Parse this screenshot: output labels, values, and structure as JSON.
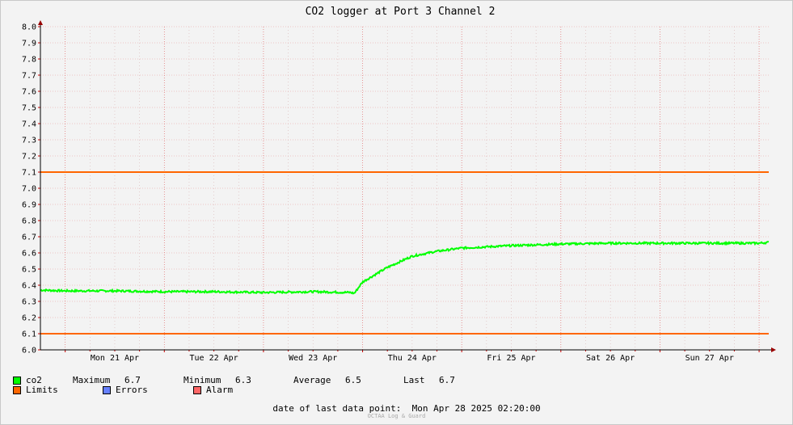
{
  "chart_data": {
    "type": "line",
    "title": "CO2 logger at Port 3 Channel 2",
    "xlabel": "",
    "ylabel": "",
    "ylim": [
      6.0,
      8.0
    ],
    "yticks": [
      "6.0",
      "6.1",
      "6.2",
      "6.3",
      "6.4",
      "6.5",
      "6.6",
      "6.7",
      "6.8",
      "6.9",
      "7.0",
      "7.1",
      "7.2",
      "7.3",
      "7.4",
      "7.5",
      "7.6",
      "7.7",
      "7.8",
      "7.9",
      "8.0"
    ],
    "xlim": [
      "2025-04-20 18:00",
      "2025-04-28 02:20"
    ],
    "day_labels": [
      "Mon 21 Apr",
      "Tue 22 Apr",
      "Wed 23 Apr",
      "Thu 24 Apr",
      "Fri 25 Apr",
      "Sat 26 Apr",
      "Sun 27 Apr"
    ],
    "grid": true,
    "series": [
      {
        "name": "co2",
        "color": "#00ff00",
        "x": [
          "2025-04-20 18:00",
          "2025-04-21 00:00",
          "2025-04-21 12:00",
          "2025-04-22 00:00",
          "2025-04-22 12:00",
          "2025-04-23 00:00",
          "2025-04-23 12:00",
          "2025-04-23 21:00",
          "2025-04-23 22:00",
          "2025-04-24 00:00",
          "2025-04-24 06:00",
          "2025-04-24 12:00",
          "2025-04-24 18:00",
          "2025-04-25 00:00",
          "2025-04-25 12:00",
          "2025-04-26 00:00",
          "2025-04-26 12:00",
          "2025-04-27 00:00",
          "2025-04-27 12:00",
          "2025-04-28 00:00",
          "2025-04-28 02:20"
        ],
        "y": [
          6.37,
          6.365,
          6.365,
          6.36,
          6.36,
          6.355,
          6.36,
          6.355,
          6.35,
          6.42,
          6.51,
          6.58,
          6.61,
          6.63,
          6.645,
          6.655,
          6.66,
          6.66,
          6.66,
          6.66,
          6.665
        ]
      },
      {
        "name": "Limits",
        "color": "#ff6600",
        "levels": [
          6.1,
          7.1
        ]
      }
    ],
    "legend": {
      "placement": "bottom-left",
      "stats": {
        "series_name": "co2",
        "max_label": "Maximum",
        "max_value": "6.7",
        "min_label": "Minimum",
        "min_value": "6.3",
        "avg_label": "Average",
        "avg_value": "6.5",
        "last_label": "Last",
        "last_value": "6.7"
      },
      "items": [
        {
          "label": "Limits",
          "color": "#ff6600"
        },
        {
          "label": "Errors",
          "color": "#6680ff"
        },
        {
          "label": "Alarm",
          "color": "#ff6666"
        }
      ]
    }
  },
  "footer": {
    "label": "date of last data point:",
    "value": "Mon Apr 28 2025 02:20:00",
    "credit": "OCTAA Log & Guard"
  }
}
